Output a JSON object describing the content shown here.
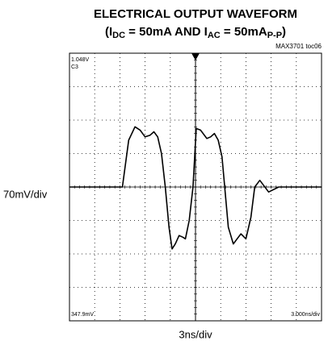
{
  "chart_data": {
    "type": "line",
    "title": "ELECTRICAL OUTPUT WAVEFORM",
    "subtitle_parts": [
      "(I",
      "DC",
      " = 50mA AND I",
      "AC",
      " = 50mA",
      "P-P",
      ")"
    ],
    "annotations": [
      "MAX3701 toc06",
      "1.048V",
      "C3",
      "347.9mV",
      "3.000ns/div"
    ],
    "ylabel": "70mV/div",
    "xlabel": "3ns/div",
    "xlim": [
      0,
      10
    ],
    "ylim": [
      -4,
      4
    ],
    "xticks": [
      0,
      1,
      2,
      3,
      4,
      5,
      6,
      7,
      8,
      9,
      10
    ],
    "yticks": [
      -4,
      -3,
      -2,
      -1,
      0,
      1,
      2,
      3,
      4
    ],
    "grid": true,
    "series": [
      {
        "color": "#000000",
        "x": [
          0,
          2.1,
          2.35,
          2.6,
          2.8,
          3.0,
          3.2,
          3.35,
          3.5,
          3.65,
          3.8,
          3.95,
          4.07,
          4.2,
          4.35,
          4.5,
          4.6,
          4.75,
          4.9,
          5.03,
          5.2,
          5.45,
          5.6,
          5.75,
          5.9,
          6.05,
          6.3,
          6.5,
          6.65,
          6.8,
          7.0,
          7.2,
          7.35,
          7.55,
          7.9,
          8.3,
          10
        ],
        "values": [
          0,
          0,
          1.4,
          1.8,
          1.7,
          1.5,
          1.55,
          1.65,
          1.5,
          1.0,
          0,
          -1.2,
          -1.85,
          -1.7,
          -1.45,
          -1.5,
          -1.55,
          -1.0,
          0,
          1.75,
          1.7,
          1.45,
          1.5,
          1.6,
          1.4,
          0.9,
          -1.2,
          -1.7,
          -1.55,
          -1.4,
          -1.55,
          -0.9,
          0,
          0.2,
          -0.15,
          0,
          0
        ]
      }
    ]
  }
}
